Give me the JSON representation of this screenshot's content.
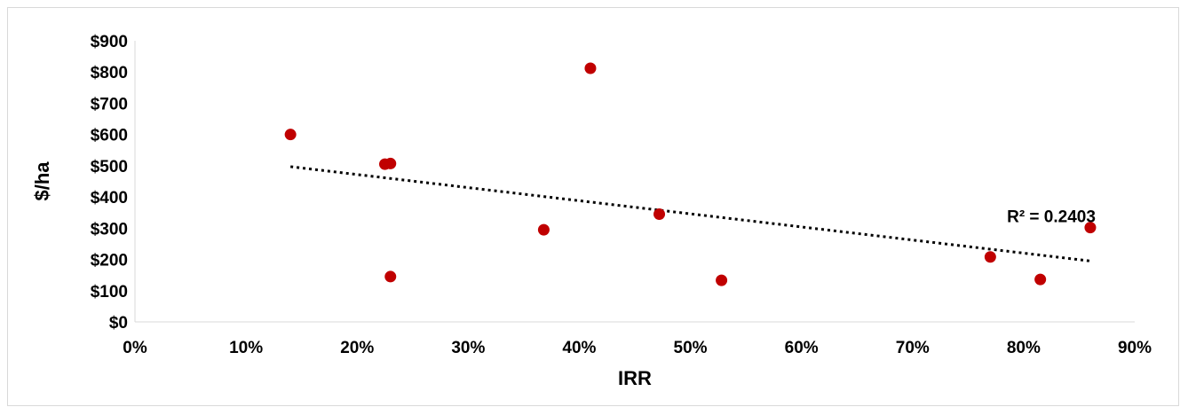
{
  "chart_data": {
    "type": "scatter",
    "title": "",
    "xlabel": "IRR",
    "ylabel": "$/ha",
    "xlim": [
      0,
      0.9
    ],
    "ylim": [
      0,
      900
    ],
    "x_ticks": [
      0,
      0.1,
      0.2,
      0.3,
      0.4,
      0.5,
      0.6,
      0.7,
      0.8,
      0.9
    ],
    "x_tick_labels": [
      "0%",
      "10%",
      "20%",
      "30%",
      "40%",
      "50%",
      "60%",
      "70%",
      "80%",
      "90%"
    ],
    "y_ticks": [
      0,
      100,
      200,
      300,
      400,
      500,
      600,
      700,
      800,
      900
    ],
    "y_tick_labels": [
      "$0",
      "$100",
      "$200",
      "$300",
      "$400",
      "$500",
      "$600",
      "$700",
      "$800",
      "$900"
    ],
    "grid": false,
    "legend": "none",
    "points": [
      {
        "x": 0.14,
        "y": 600
      },
      {
        "x": 0.225,
        "y": 505
      },
      {
        "x": 0.23,
        "y": 507
      },
      {
        "x": 0.23,
        "y": 145
      },
      {
        "x": 0.368,
        "y": 295
      },
      {
        "x": 0.41,
        "y": 812
      },
      {
        "x": 0.472,
        "y": 345
      },
      {
        "x": 0.528,
        "y": 133
      },
      {
        "x": 0.77,
        "y": 208
      },
      {
        "x": 0.815,
        "y": 136
      },
      {
        "x": 0.86,
        "y": 302
      }
    ],
    "point_color": "#c00000",
    "trendline": {
      "type": "linear",
      "x_start": 0.14,
      "y_start": 497,
      "x_end": 0.86,
      "y_end": 195,
      "color": "#000000",
      "style": "dotted",
      "label": "R² = 0.2403",
      "label_anchor": {
        "x": 0.785,
        "y": 320
      }
    }
  }
}
